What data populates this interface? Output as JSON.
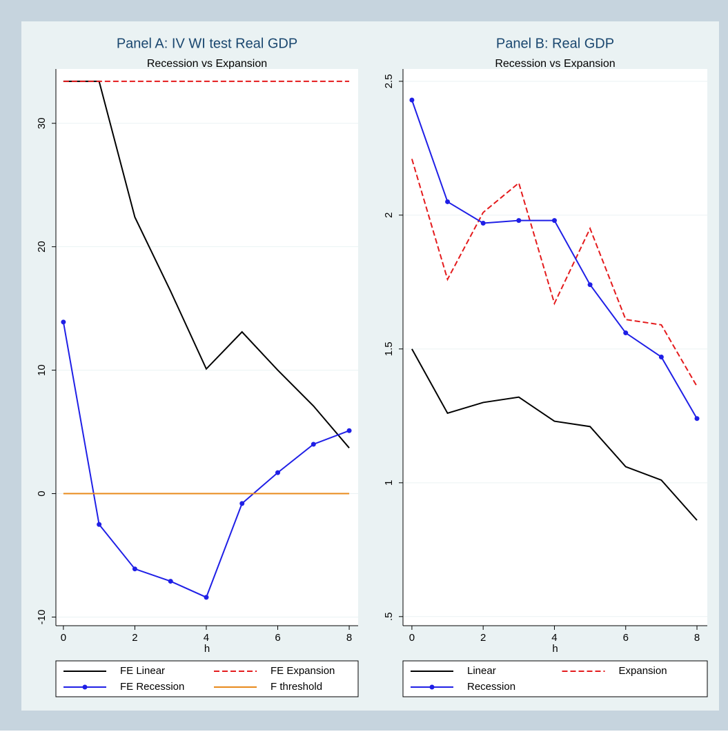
{
  "chart_data": [
    {
      "type": "line",
      "title": "Panel A: IV WI test Real GDP",
      "subtitle": "Recession vs Expansion",
      "xlabel": "h",
      "x": [
        0,
        1,
        2,
        3,
        4,
        5,
        6,
        7,
        8
      ],
      "xlim": [
        -0.21,
        8.25
      ],
      "xticks": [
        0,
        2,
        4,
        6,
        8
      ],
      "ylim": [
        -10.7,
        34.4
      ],
      "yticks": [
        -10,
        0,
        10,
        20,
        30
      ],
      "grid": true,
      "legend": "bottom",
      "series": [
        {
          "name": "FE Linear",
          "color": "#000000",
          "line_style": "solid",
          "marker": "none",
          "values": [
            33.4,
            33.4,
            22.4,
            16.4,
            10.1,
            13.1,
            10.0,
            7.1,
            3.7
          ]
        },
        {
          "name": "FE Expansion",
          "color": "#e41a1c",
          "line_style": "dashed",
          "marker": "none",
          "values": [
            33.4,
            33.4,
            33.4,
            33.4,
            33.4,
            33.4,
            33.4,
            33.4,
            33.4
          ]
        },
        {
          "name": "FE Recession",
          "color": "#1f1fe6",
          "line_style": "solid",
          "marker": "circle",
          "values": [
            13.9,
            -2.5,
            -6.1,
            -7.1,
            -8.4,
            -0.8,
            1.7,
            4.0,
            5.1
          ]
        },
        {
          "name": "F threshold",
          "color": "#e8891a",
          "line_style": "solid",
          "marker": "none",
          "values": [
            0,
            0,
            0,
            0,
            0,
            0,
            0,
            0,
            0
          ]
        }
      ]
    },
    {
      "type": "line",
      "title": "Panel B: Real GDP",
      "subtitle": "Recession vs Expansion",
      "xlabel": "h",
      "x": [
        0,
        1,
        2,
        3,
        4,
        5,
        6,
        7,
        8
      ],
      "xlim": [
        -0.25,
        8.29
      ],
      "xticks": [
        0,
        2,
        4,
        6,
        8
      ],
      "ylim": [
        0.466,
        2.546
      ],
      "yticks": [
        {
          "value": 0.5,
          "label": ".5"
        },
        1,
        1.5,
        2,
        2.5
      ],
      "grid": true,
      "legend": "bottom",
      "series": [
        {
          "name": "Linear",
          "color": "#000000",
          "line_style": "solid",
          "marker": "none",
          "values": [
            1.5,
            1.26,
            1.3,
            1.32,
            1.23,
            1.21,
            1.06,
            1.01,
            0.86
          ]
        },
        {
          "name": "Expansion",
          "color": "#e41a1c",
          "line_style": "dashed",
          "marker": "none",
          "values": [
            2.21,
            1.76,
            2.01,
            2.12,
            1.67,
            1.95,
            1.61,
            1.59,
            1.36
          ]
        },
        {
          "name": "Recession",
          "color": "#1f1fe6",
          "line_style": "solid",
          "marker": "circle",
          "values": [
            2.43,
            2.05,
            1.97,
            1.98,
            1.98,
            1.74,
            1.56,
            1.47,
            1.24
          ]
        }
      ]
    }
  ]
}
